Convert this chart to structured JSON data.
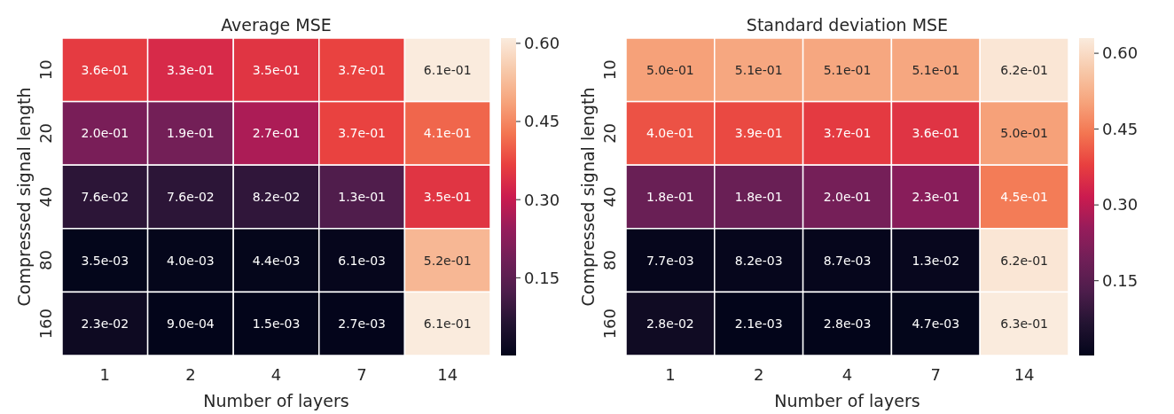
{
  "chart_data": [
    {
      "type": "heatmap",
      "title": "Average MSE",
      "xlabel": "Number of layers",
      "ylabel": "Compressed signal length",
      "categories": [
        "1",
        "2",
        "4",
        "7",
        "14"
      ],
      "y_categories": [
        "10",
        "20",
        "40",
        "80",
        "160"
      ],
      "cells": [
        [
          0.36,
          0.33,
          0.35,
          0.37,
          0.61
        ],
        [
          0.2,
          0.19,
          0.27,
          0.37,
          0.41
        ],
        [
          0.076,
          0.076,
          0.082,
          0.13,
          0.35
        ],
        [
          0.0035,
          0.004,
          0.0044,
          0.0061,
          0.52
        ],
        [
          0.023,
          0.0009,
          0.0015,
          0.0027,
          0.61
        ]
      ],
      "cell_labels": [
        [
          "3.6e-01",
          "3.3e-01",
          "3.5e-01",
          "3.7e-01",
          "6.1e-01"
        ],
        [
          "2.0e-01",
          "1.9e-01",
          "2.7e-01",
          "3.7e-01",
          "4.1e-01"
        ],
        [
          "7.6e-02",
          "7.6e-02",
          "8.2e-02",
          "1.3e-01",
          "3.5e-01"
        ],
        [
          "3.5e-03",
          "4.0e-03",
          "4.4e-03",
          "6.1e-03",
          "5.2e-01"
        ],
        [
          "2.3e-02",
          "9.0e-04",
          "1.5e-03",
          "2.7e-03",
          "6.1e-01"
        ]
      ],
      "clim": [
        0.0009,
        0.61
      ],
      "cticks": [
        {
          "value": 0.15,
          "label": "0.15"
        },
        {
          "value": 0.3,
          "label": "0.30"
        },
        0.45,
        {
          "value": 0.6,
          "label": "0.60"
        }
      ]
    },
    {
      "type": "heatmap",
      "title": "Standard deviation MSE",
      "xlabel": "Number of layers",
      "ylabel": "Compressed signal length",
      "categories": [
        "1",
        "2",
        "4",
        "7",
        "14"
      ],
      "y_categories": [
        "10",
        "20",
        "40",
        "80",
        "160"
      ],
      "cells": [
        [
          0.5,
          0.51,
          0.51,
          0.51,
          0.62
        ],
        [
          0.4,
          0.39,
          0.37,
          0.36,
          0.5
        ],
        [
          0.18,
          0.18,
          0.2,
          0.23,
          0.45
        ],
        [
          0.0077,
          0.0082,
          0.0087,
          0.013,
          0.62
        ],
        [
          0.028,
          0.0021,
          0.0028,
          0.0047,
          0.63
        ]
      ],
      "cell_labels": [
        [
          "5.0e-01",
          "5.1e-01",
          "5.1e-01",
          "5.1e-01",
          "6.2e-01"
        ],
        [
          "4.0e-01",
          "3.9e-01",
          "3.7e-01",
          "3.6e-01",
          "5.0e-01"
        ],
        [
          "1.8e-01",
          "1.8e-01",
          "2.0e-01",
          "2.3e-01",
          "4.5e-01"
        ],
        [
          "7.7e-03",
          "8.2e-03",
          "8.7e-03",
          "1.3e-02",
          "6.2e-01"
        ],
        [
          "2.8e-02",
          "2.1e-03",
          "2.8e-03",
          "4.7e-03",
          "6.3e-01"
        ]
      ],
      "clim": [
        0.0021,
        0.63
      ],
      "cticks": [
        {
          "value": 0.15,
          "label": "0.15"
        },
        {
          "value": 0.3,
          "label": "0.30"
        },
        0.45,
        {
          "value": 0.6,
          "label": "0.60"
        }
      ]
    }
  ]
}
